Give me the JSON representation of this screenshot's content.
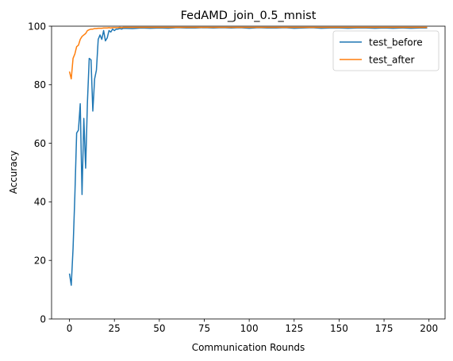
{
  "chart_data": {
    "type": "line",
    "title": "FedAMD_join_0.5_mnist",
    "xlabel": "Communication Rounds",
    "ylabel": "Accuracy",
    "xlim": [
      -9.95,
      208.95
    ],
    "ylim": [
      0,
      100
    ],
    "xticks": [
      0,
      25,
      50,
      75,
      100,
      125,
      150,
      175,
      200
    ],
    "yticks": [
      0,
      20,
      40,
      60,
      80,
      100
    ],
    "grid": false,
    "legend_position": "upper right",
    "series": [
      {
        "name": "test_before",
        "color": "#1f77b4",
        "x": [
          0,
          1,
          2,
          3,
          4,
          5,
          6,
          7,
          8,
          9,
          10,
          11,
          12,
          13,
          14,
          15,
          16,
          17,
          18,
          19,
          20,
          21,
          22,
          23,
          24,
          25,
          26,
          27,
          28,
          29,
          30,
          35,
          40,
          45,
          50,
          55,
          60,
          65,
          70,
          75,
          80,
          85,
          90,
          95,
          100,
          105,
          110,
          115,
          120,
          125,
          130,
          135,
          140,
          145,
          150,
          155,
          160,
          165,
          170,
          175,
          180,
          185,
          190,
          195,
          199
        ],
        "y": [
          15.5,
          11.5,
          24,
          42,
          63.5,
          64.5,
          73.5,
          42.5,
          68.5,
          51.5,
          74,
          89,
          88.5,
          71,
          82,
          85,
          95.5,
          97,
          95.5,
          98.5,
          95,
          96,
          98.5,
          98,
          99,
          98.5,
          99,
          99,
          99.2,
          99,
          99.3,
          99.2,
          99.4,
          99.3,
          99.4,
          99.3,
          99.5,
          99.4,
          99.4,
          99.5,
          99.4,
          99.5,
          99.4,
          99.5,
          99.3,
          99.5,
          99.4,
          99.4,
          99.5,
          99.3,
          99.4,
          99.5,
          99.3,
          99.4,
          99.4,
          99.3,
          99.4,
          99.4,
          99.3,
          99.4,
          99.3,
          99.4,
          99.3,
          99.4,
          99.4
        ]
      },
      {
        "name": "test_after",
        "color": "#ff7f0e",
        "x": [
          0,
          1,
          2,
          3,
          4,
          5,
          6,
          7,
          8,
          9,
          10,
          11,
          12,
          13,
          14,
          15,
          16,
          17,
          18,
          19,
          20,
          21,
          22,
          23,
          24,
          25,
          26,
          27,
          28,
          29,
          30,
          35,
          40,
          45,
          50,
          55,
          60,
          65,
          70,
          75,
          80,
          85,
          90,
          95,
          100,
          105,
          110,
          115,
          120,
          125,
          130,
          135,
          140,
          145,
          150,
          155,
          160,
          165,
          170,
          175,
          180,
          185,
          190,
          195,
          199
        ],
        "y": [
          84.5,
          82,
          89,
          90.5,
          93,
          93.5,
          95.5,
          96.5,
          97,
          97.5,
          98.5,
          98.8,
          99,
          99,
          99.2,
          99.2,
          99.3,
          99.3,
          99.3,
          99.4,
          99.4,
          99.4,
          99.5,
          99.4,
          99.5,
          99.5,
          99.5,
          99.5,
          99.6,
          99.5,
          99.6,
          99.6,
          99.6,
          99.6,
          99.6,
          99.6,
          99.6,
          99.6,
          99.6,
          99.6,
          99.6,
          99.6,
          99.6,
          99.6,
          99.6,
          99.6,
          99.6,
          99.6,
          99.6,
          99.6,
          99.6,
          99.6,
          99.6,
          99.6,
          99.6,
          99.6,
          99.6,
          99.6,
          99.6,
          99.6,
          99.6,
          99.6,
          99.6,
          99.6,
          99.6
        ]
      }
    ]
  }
}
